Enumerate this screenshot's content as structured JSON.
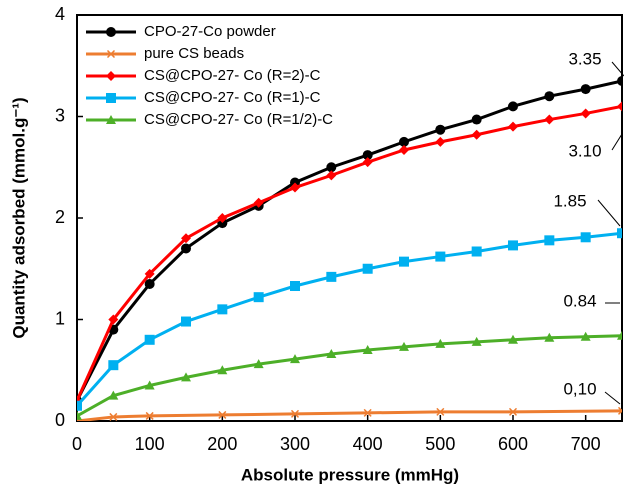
{
  "chart_data": {
    "type": "line",
    "xlabel": "Absolute pressure (mmHg)",
    "ylabel": "Quantity adsorbed (mmol.g⁻¹)",
    "xlim": [
      0,
      750
    ],
    "ylim": [
      0,
      4
    ],
    "xticks": [
      0,
      100,
      200,
      300,
      400,
      500,
      600,
      700
    ],
    "yticks": [
      0,
      1,
      2,
      3,
      4
    ],
    "grid": false,
    "legend": "upper left",
    "series": [
      {
        "name": "CPO-27-Co powder",
        "color": "#000000",
        "marker": "circle",
        "x": [
          0,
          50,
          100,
          150,
          200,
          250,
          300,
          350,
          400,
          450,
          500,
          550,
          600,
          650,
          700,
          750
        ],
        "values": [
          0.2,
          0.9,
          1.35,
          1.7,
          1.95,
          2.12,
          2.35,
          2.5,
          2.62,
          2.75,
          2.87,
          2.97,
          3.1,
          3.2,
          3.27,
          3.35
        ]
      },
      {
        "name": "pure CS beads",
        "color": "#ed7d31",
        "marker": "star",
        "x": [
          0,
          50,
          100,
          200,
          300,
          400,
          500,
          600,
          750
        ],
        "values": [
          0,
          0.04,
          0.05,
          0.06,
          0.07,
          0.08,
          0.09,
          0.09,
          0.1
        ]
      },
      {
        "name": "CS@CPO-27- Co (R=2)-C",
        "color": "#ff0000",
        "marker": "diamond",
        "x": [
          0,
          50,
          100,
          150,
          200,
          250,
          300,
          350,
          400,
          450,
          500,
          550,
          600,
          650,
          700,
          750
        ],
        "values": [
          0.2,
          1.0,
          1.45,
          1.8,
          2.0,
          2.15,
          2.3,
          2.42,
          2.55,
          2.67,
          2.75,
          2.82,
          2.9,
          2.97,
          3.03,
          3.1
        ]
      },
      {
        "name": "CS@CPO-27- Co (R=1)-C",
        "color": "#00b0f0",
        "marker": "square",
        "x": [
          0,
          50,
          100,
          150,
          200,
          250,
          300,
          350,
          400,
          450,
          500,
          550,
          600,
          650,
          700,
          750
        ],
        "values": [
          0.15,
          0.55,
          0.8,
          0.98,
          1.1,
          1.22,
          1.33,
          1.42,
          1.5,
          1.57,
          1.62,
          1.67,
          1.73,
          1.78,
          1.81,
          1.85
        ]
      },
      {
        "name": "CS@CPO-27- Co (R=1/2)-C",
        "color": "#4daf28",
        "marker": "triangle",
        "x": [
          0,
          50,
          100,
          150,
          200,
          250,
          300,
          350,
          400,
          450,
          500,
          550,
          600,
          650,
          700,
          750
        ],
        "values": [
          0.05,
          0.25,
          0.35,
          0.43,
          0.5,
          0.56,
          0.61,
          0.66,
          0.7,
          0.73,
          0.76,
          0.78,
          0.8,
          0.82,
          0.83,
          0.84
        ]
      }
    ],
    "annotations": [
      "3.35",
      "3.10",
      "1.85",
      "0.84",
      "0,10"
    ]
  }
}
